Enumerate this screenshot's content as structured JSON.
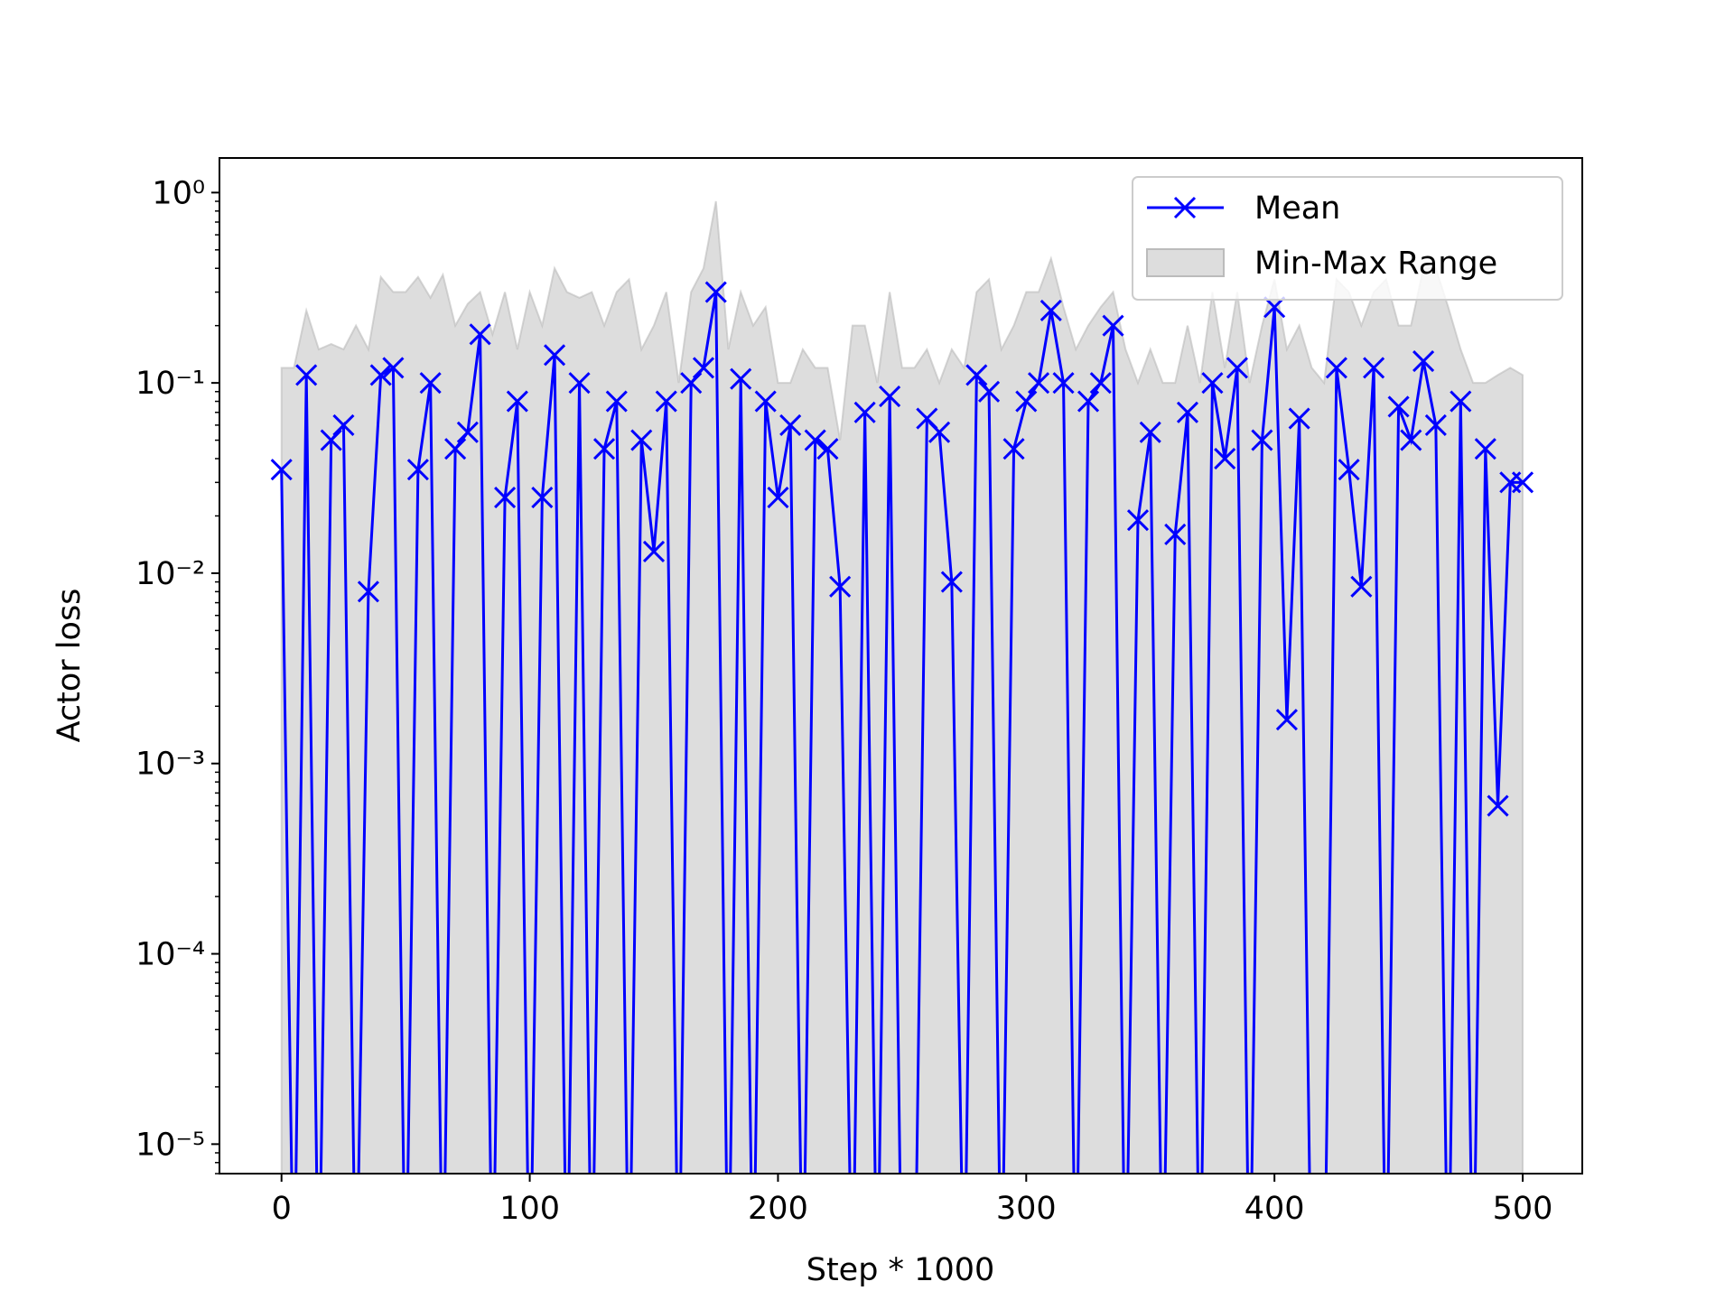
{
  "chart_data": {
    "type": "line",
    "xlabel": "Step * 1000",
    "ylabel": "Actor loss",
    "yscale": "log",
    "xlim": [
      -25,
      524
    ],
    "ylim": [
      7e-06,
      1.52
    ],
    "xticks": [
      0,
      100,
      200,
      300,
      400,
      500
    ],
    "yticks": [
      {
        "value": 1e-05,
        "label": "10⁻⁵"
      },
      {
        "value": 0.0001,
        "label": "10⁻⁴"
      },
      {
        "value": 0.001,
        "label": "10⁻³"
      },
      {
        "value": 0.01,
        "label": "10⁻²"
      },
      {
        "value": 0.1,
        "label": "10⁻¹"
      },
      {
        "value": 1,
        "label": "10⁰"
      }
    ],
    "legend": "upper right",
    "x": [
      0,
      5,
      10,
      15,
      20,
      25,
      30,
      35,
      40,
      45,
      50,
      55,
      60,
      65,
      70,
      75,
      80,
      85,
      90,
      95,
      100,
      105,
      110,
      115,
      120,
      125,
      130,
      135,
      140,
      145,
      150,
      155,
      160,
      165,
      170,
      175,
      180,
      185,
      190,
      195,
      200,
      205,
      210,
      215,
      220,
      225,
      230,
      235,
      240,
      245,
      250,
      255,
      260,
      265,
      270,
      275,
      280,
      285,
      290,
      295,
      300,
      305,
      310,
      315,
      320,
      325,
      330,
      335,
      340,
      345,
      350,
      355,
      360,
      365,
      370,
      375,
      380,
      385,
      390,
      395,
      400,
      405,
      410,
      415,
      420,
      425,
      430,
      435,
      440,
      445,
      450,
      455,
      460,
      465,
      470,
      475,
      480,
      485,
      490,
      495,
      500
    ],
    "series": [
      {
        "name": "Mean",
        "color": "#0000ff",
        "marker": "x",
        "values": [
          0.035,
          1e-06,
          0.11,
          1e-06,
          0.05,
          0.06,
          1e-06,
          0.008,
          0.11,
          0.12,
          1e-06,
          0.035,
          0.1,
          1e-06,
          0.045,
          0.055,
          0.18,
          1e-06,
          0.025,
          0.08,
          1e-06,
          0.025,
          0.14,
          1e-06,
          0.1,
          1e-06,
          0.045,
          0.08,
          1e-06,
          0.05,
          0.013,
          0.08,
          1e-06,
          0.1,
          0.12,
          0.3,
          1e-06,
          0.105,
          1e-06,
          0.08,
          0.025,
          0.06,
          1e-06,
          0.05,
          0.045,
          0.0085,
          1e-06,
          0.07,
          1e-06,
          0.085,
          1e-06,
          1e-06,
          0.065,
          0.055,
          0.009,
          1e-06,
          0.11,
          0.09,
          1e-06,
          0.045,
          0.08,
          0.1,
          0.24,
          0.1,
          1e-06,
          0.08,
          0.1,
          0.2,
          1e-06,
          0.019,
          0.055,
          1e-06,
          0.016,
          0.07,
          1e-06,
          0.1,
          0.04,
          0.12,
          1e-06,
          0.05,
          0.25,
          0.0017,
          0.065,
          1e-06,
          1e-06,
          0.12,
          0.035,
          0.0085,
          0.12,
          1e-06,
          0.075,
          0.05,
          0.13,
          0.06,
          1e-06,
          0.08,
          1e-06,
          0.045,
          0.0006,
          0.03,
          0.03
        ]
      },
      {
        "name": "Min-Max Range",
        "color": "#bbbbbb",
        "min": [
          1e-06,
          1e-06,
          1e-06,
          1e-06,
          1e-06,
          1e-06,
          1e-06,
          1e-06,
          1e-06,
          1e-06,
          1e-06,
          1e-06,
          1e-06,
          1e-06,
          1e-06,
          1e-06,
          1e-06,
          1e-06,
          1e-06,
          1e-06,
          1e-06,
          1e-06,
          1e-06,
          1e-06,
          1e-06,
          1e-06,
          1e-06,
          1e-06,
          1e-06,
          1e-06,
          1e-06,
          1e-06,
          1e-06,
          1e-06,
          1e-06,
          1e-06,
          1e-06,
          1e-06,
          1e-06,
          1e-06,
          1e-06,
          1e-06,
          1e-06,
          1e-06,
          1e-06,
          1e-06,
          1e-06,
          1e-06,
          1e-06,
          1e-06,
          1e-06,
          1e-06,
          1e-06,
          1e-06,
          1e-06,
          1e-06,
          1e-06,
          1e-06,
          1e-06,
          1e-06,
          1e-06,
          1e-06,
          1e-06,
          1e-06,
          1e-06,
          1e-06,
          1e-06,
          1e-06,
          1e-06,
          1e-06,
          1e-06,
          1e-06,
          1e-06,
          1e-06,
          1e-06,
          1e-06,
          1e-06,
          1e-06,
          1e-06,
          1e-06,
          1e-06,
          1e-06,
          1e-06,
          1e-06,
          1e-06,
          1e-06,
          1e-06,
          1e-06,
          1e-06,
          1e-06,
          1e-06,
          1e-06,
          1e-06,
          1e-06,
          1e-06,
          1e-06,
          1e-06,
          1e-06,
          1e-06,
          1e-06,
          1e-06
        ],
        "max": [
          0.12,
          0.12,
          0.24,
          0.15,
          0.16,
          0.15,
          0.2,
          0.15,
          0.36,
          0.3,
          0.3,
          0.36,
          0.28,
          0.37,
          0.2,
          0.26,
          0.3,
          0.18,
          0.3,
          0.15,
          0.3,
          0.2,
          0.4,
          0.3,
          0.28,
          0.3,
          0.2,
          0.3,
          0.35,
          0.15,
          0.2,
          0.3,
          0.1,
          0.3,
          0.4,
          0.9,
          0.15,
          0.3,
          0.2,
          0.25,
          0.1,
          0.1,
          0.15,
          0.12,
          0.12,
          0.05,
          0.2,
          0.2,
          0.1,
          0.3,
          0.12,
          0.12,
          0.15,
          0.1,
          0.15,
          0.12,
          0.3,
          0.35,
          0.15,
          0.2,
          0.3,
          0.3,
          0.45,
          0.25,
          0.15,
          0.2,
          0.25,
          0.3,
          0.15,
          0.1,
          0.15,
          0.1,
          0.1,
          0.2,
          0.1,
          0.3,
          0.12,
          0.3,
          0.1,
          0.2,
          0.35,
          0.15,
          0.2,
          0.12,
          0.1,
          0.35,
          0.3,
          0.2,
          0.3,
          0.35,
          0.2,
          0.2,
          0.4,
          0.4,
          0.25,
          0.15,
          0.1,
          0.1,
          0.11,
          0.12,
          0.11
        ]
      }
    ]
  }
}
